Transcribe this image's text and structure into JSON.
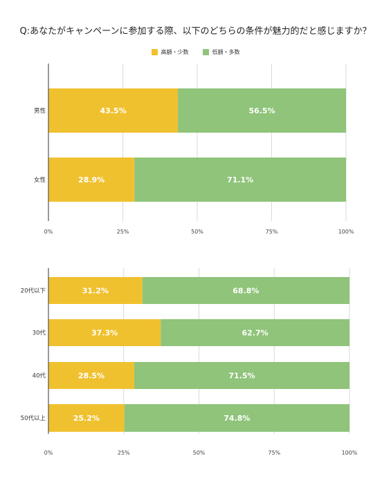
{
  "title": "Q:あなたがキャンペーンに参加する際、以下のどちらの条件が魅力的だと感じますか？",
  "legend": [
    {
      "name": "高額・少数",
      "color": "#F0C12F"
    },
    {
      "name": "低額・多数",
      "color": "#8FC47A"
    }
  ],
  "chart_data": [
    {
      "type": "bar",
      "orientation": "horizontal",
      "stacked": "percent",
      "categories": [
        "男性",
        "女性"
      ],
      "series": [
        {
          "name": "高額・少数",
          "values": [
            43.5,
            28.9
          ],
          "labels": [
            "43.5%",
            "28.9%"
          ]
        },
        {
          "name": "低額・多数",
          "values": [
            56.5,
            71.1
          ],
          "labels": [
            "56.5%",
            "71.1%"
          ]
        }
      ],
      "xlim": [
        0,
        100
      ],
      "xticks": [
        "0%",
        "25%",
        "50%",
        "75%",
        "100%"
      ],
      "grid": true
    },
    {
      "type": "bar",
      "orientation": "horizontal",
      "stacked": "percent",
      "categories": [
        "20代以下",
        "30代",
        "40代",
        "50代以上"
      ],
      "series": [
        {
          "name": "高額・少数",
          "values": [
            31.2,
            37.3,
            28.5,
            25.2
          ],
          "labels": [
            "31.2%",
            "37.3%",
            "28.5%",
            "25.2%"
          ]
        },
        {
          "name": "低額・多数",
          "values": [
            68.8,
            62.7,
            71.5,
            74.8
          ],
          "labels": [
            "68.8%",
            "62.7%",
            "71.5%",
            "74.8%"
          ]
        }
      ],
      "xlim": [
        0,
        100
      ],
      "xticks": [
        "0%",
        "25%",
        "50%",
        "75%",
        "100%"
      ],
      "grid": true
    }
  ]
}
